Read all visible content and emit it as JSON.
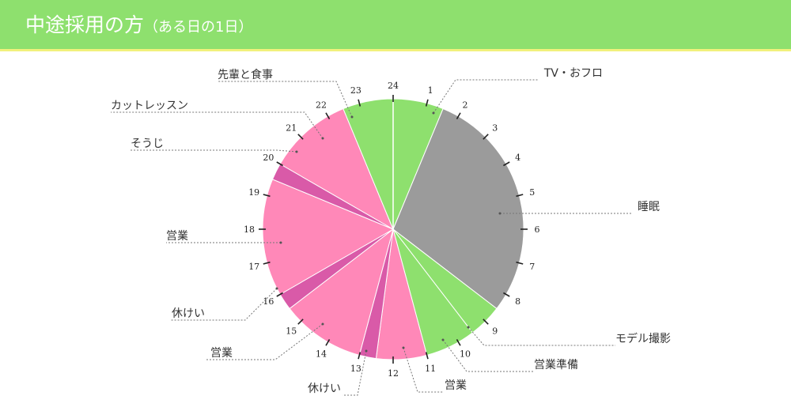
{
  "header": {
    "title": "中途採用の方",
    "subtitle": "（ある日の1日）"
  },
  "colors": {
    "header_bg": "#8ee06e",
    "header_line": "#f1f17c",
    "green": "#8ee06e",
    "gray": "#9b9b9b",
    "pink": "#ff88b8",
    "magenta": "#d95aa8"
  },
  "chart_data": {
    "type": "pie",
    "unit": "hours",
    "hour_ticks": [
      "1",
      "2",
      "3",
      "4",
      "5",
      "6",
      "7",
      "8",
      "9",
      "10",
      "11",
      "12",
      "13",
      "14",
      "15",
      "16",
      "17",
      "18",
      "19",
      "20",
      "21",
      "22",
      "23",
      "24"
    ],
    "slices": [
      {
        "label": "TV・おフロ",
        "start": 0,
        "end": 1.5,
        "color": "green"
      },
      {
        "label": "睡眠",
        "start": 1.5,
        "end": 8.5,
        "color": "gray"
      },
      {
        "label": "モデル撮影",
        "start": 8.5,
        "end": 9.5,
        "color": "green"
      },
      {
        "label": "営業準備",
        "start": 9.5,
        "end": 11,
        "color": "green"
      },
      {
        "label": "営業",
        "start": 11,
        "end": 12.5,
        "color": "pink"
      },
      {
        "label": "休けい",
        "start": 12.5,
        "end": 13,
        "color": "magenta"
      },
      {
        "label": "営業",
        "start": 13,
        "end": 15.5,
        "color": "pink"
      },
      {
        "label": "休けい",
        "start": 15.5,
        "end": 16,
        "color": "magenta"
      },
      {
        "label": "営業",
        "start": 16,
        "end": 19.5,
        "color": "pink"
      },
      {
        "label": "そうじ",
        "start": 19.5,
        "end": 20,
        "color": "magenta"
      },
      {
        "label": "カットレッスン",
        "start": 20,
        "end": 22.5,
        "color": "pink"
      },
      {
        "label": "先輩と食事",
        "start": 22.5,
        "end": 24,
        "color": "green"
      }
    ]
  }
}
